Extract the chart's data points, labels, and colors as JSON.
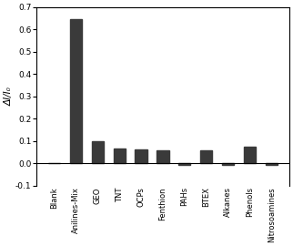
{
  "categories": [
    "Blank",
    "Anilines-Mix",
    "GEO",
    "TNT",
    "OCPs",
    "Fenthion",
    "PAHs",
    "BTEX",
    "Alkanes",
    "Phenols",
    "Nitrosoamines"
  ],
  "values": [
    0.0,
    0.645,
    0.1,
    0.067,
    0.063,
    0.058,
    -0.007,
    0.06,
    -0.005,
    0.075,
    -0.007
  ],
  "bar_color": "#3a3a3a",
  "ylabel": "ΔI/I₀",
  "ylim": [
    -0.1,
    0.7
  ],
  "yticks": [
    -0.1,
    0.0,
    0.1,
    0.2,
    0.3,
    0.4,
    0.5,
    0.6,
    0.7
  ],
  "bar_width": 0.55,
  "background_color": "#ffffff",
  "xlabel_fontsize": 6.0,
  "ylabel_fontsize": 7.5,
  "ytick_fontsize": 6.5
}
